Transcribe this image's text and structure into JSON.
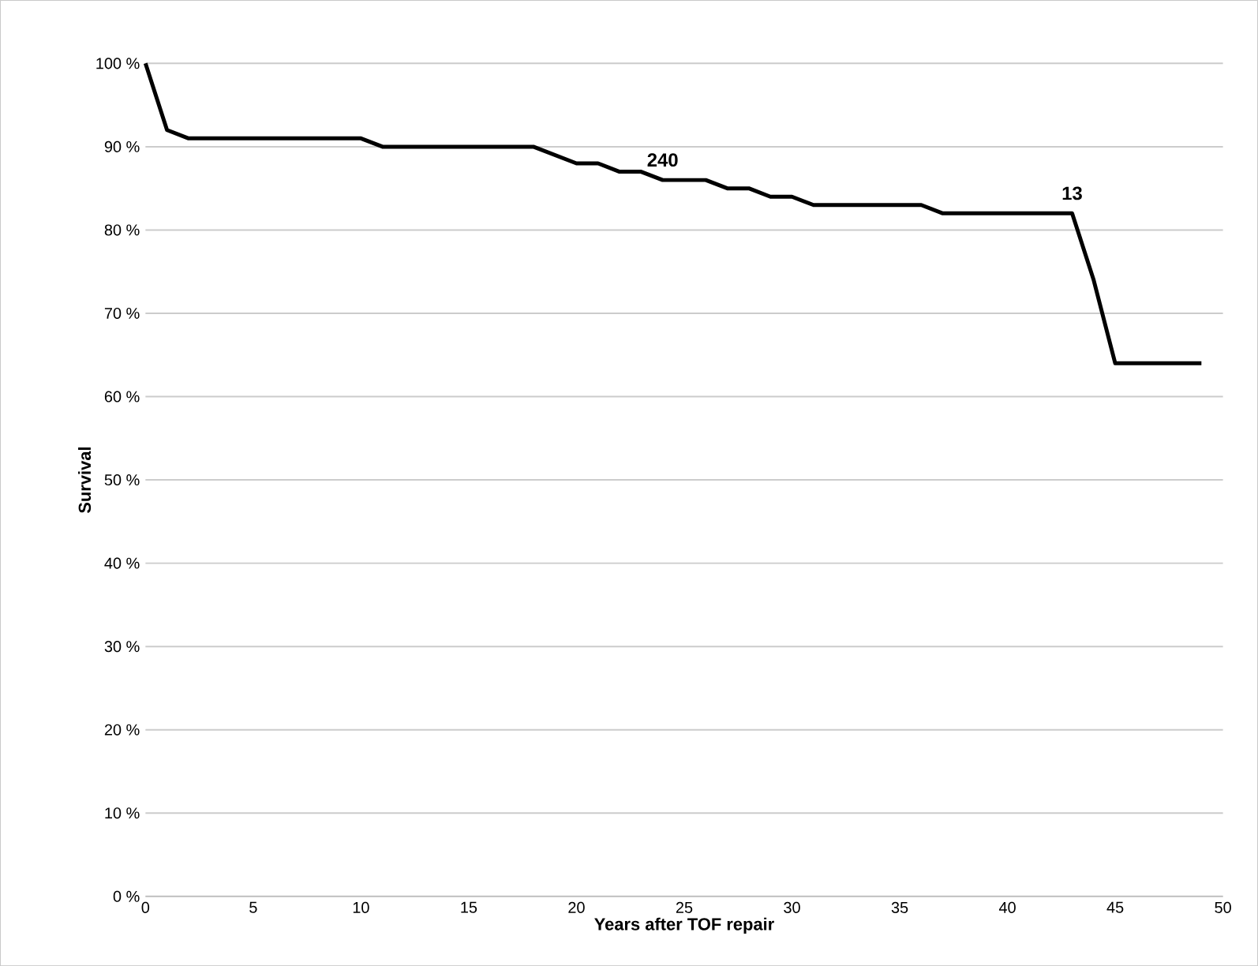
{
  "chart_data": {
    "type": "line",
    "xlabel": "Years after TOF repair",
    "ylabel": "Survival",
    "x": [
      0,
      1,
      2,
      10,
      11,
      18,
      20,
      21,
      22,
      23,
      24,
      26,
      27,
      28,
      29,
      30,
      31,
      36,
      37,
      43,
      44,
      45,
      49
    ],
    "series": [
      {
        "color": "#000000",
        "values": [
          100,
          92,
          91,
          91,
          90,
          90,
          88,
          88,
          87,
          87,
          86,
          86,
          85,
          85,
          84,
          84,
          83,
          83,
          82,
          82,
          74,
          64,
          64
        ]
      }
    ],
    "xlim": [
      0,
      50
    ],
    "xticks": [
      0,
      5,
      10,
      15,
      20,
      25,
      30,
      35,
      40,
      45,
      50
    ],
    "ylim": [
      0,
      100
    ],
    "yticks": [
      {
        "value": 0,
        "label": "0 %"
      },
      {
        "value": 10,
        "label": "10 %"
      },
      {
        "value": 20,
        "label": "20 %"
      },
      {
        "value": 30,
        "label": "30 %"
      },
      {
        "value": 40,
        "label": "40 %"
      },
      {
        "value": 50,
        "label": "50 %"
      },
      {
        "value": 60,
        "label": "60 %"
      },
      {
        "value": 70,
        "label": "70 %"
      },
      {
        "value": 80,
        "label": "80 %"
      },
      {
        "value": 90,
        "label": "90 %"
      },
      {
        "value": 100,
        "label": "100 %"
      }
    ],
    "grid": "y",
    "line_style": "solid",
    "annotations": [
      {
        "text": "240",
        "x": 24,
        "y": 86
      },
      {
        "text": "13",
        "x": 43,
        "y": 82
      }
    ]
  }
}
